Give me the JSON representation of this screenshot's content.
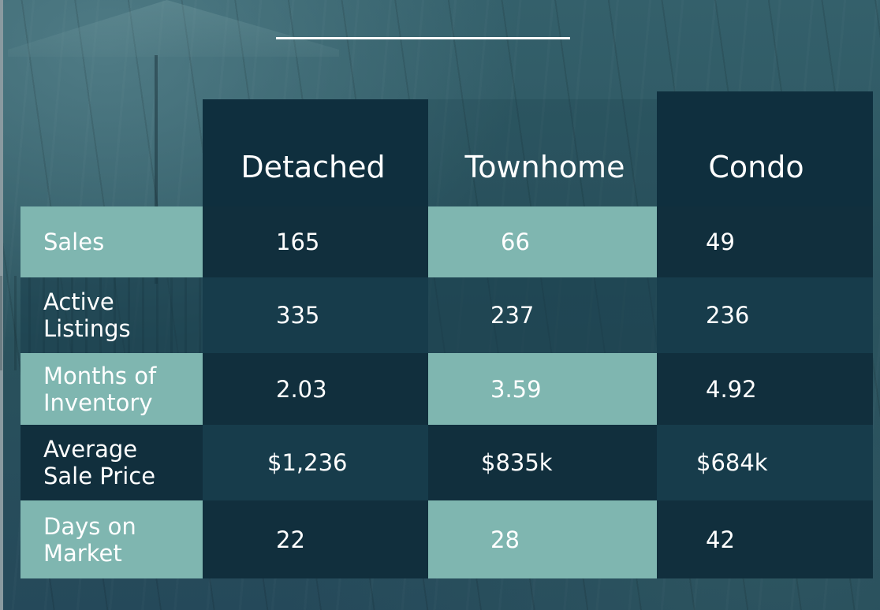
{
  "table": {
    "columns": [
      "Detached",
      "Townhome",
      "Condo"
    ],
    "rows": [
      {
        "label": "Sales",
        "values": [
          "165",
          "66",
          "49"
        ]
      },
      {
        "label": "Active\nListings",
        "values": [
          "335",
          "237",
          "236"
        ]
      },
      {
        "label": "Months of\nInventory",
        "values": [
          "2.03",
          "3.59",
          "4.92"
        ]
      },
      {
        "label": "Average\nSale Price",
        "values": [
          "$1,236",
          "$835k",
          "$684k"
        ]
      },
      {
        "label": "Days on\nMarket",
        "values": [
          "22",
          "28",
          "42"
        ]
      }
    ]
  },
  "colors": {
    "accent_teal": "#7fb6b0",
    "column_dark": "#0f2f3e",
    "row_dark": "#173c4b"
  }
}
